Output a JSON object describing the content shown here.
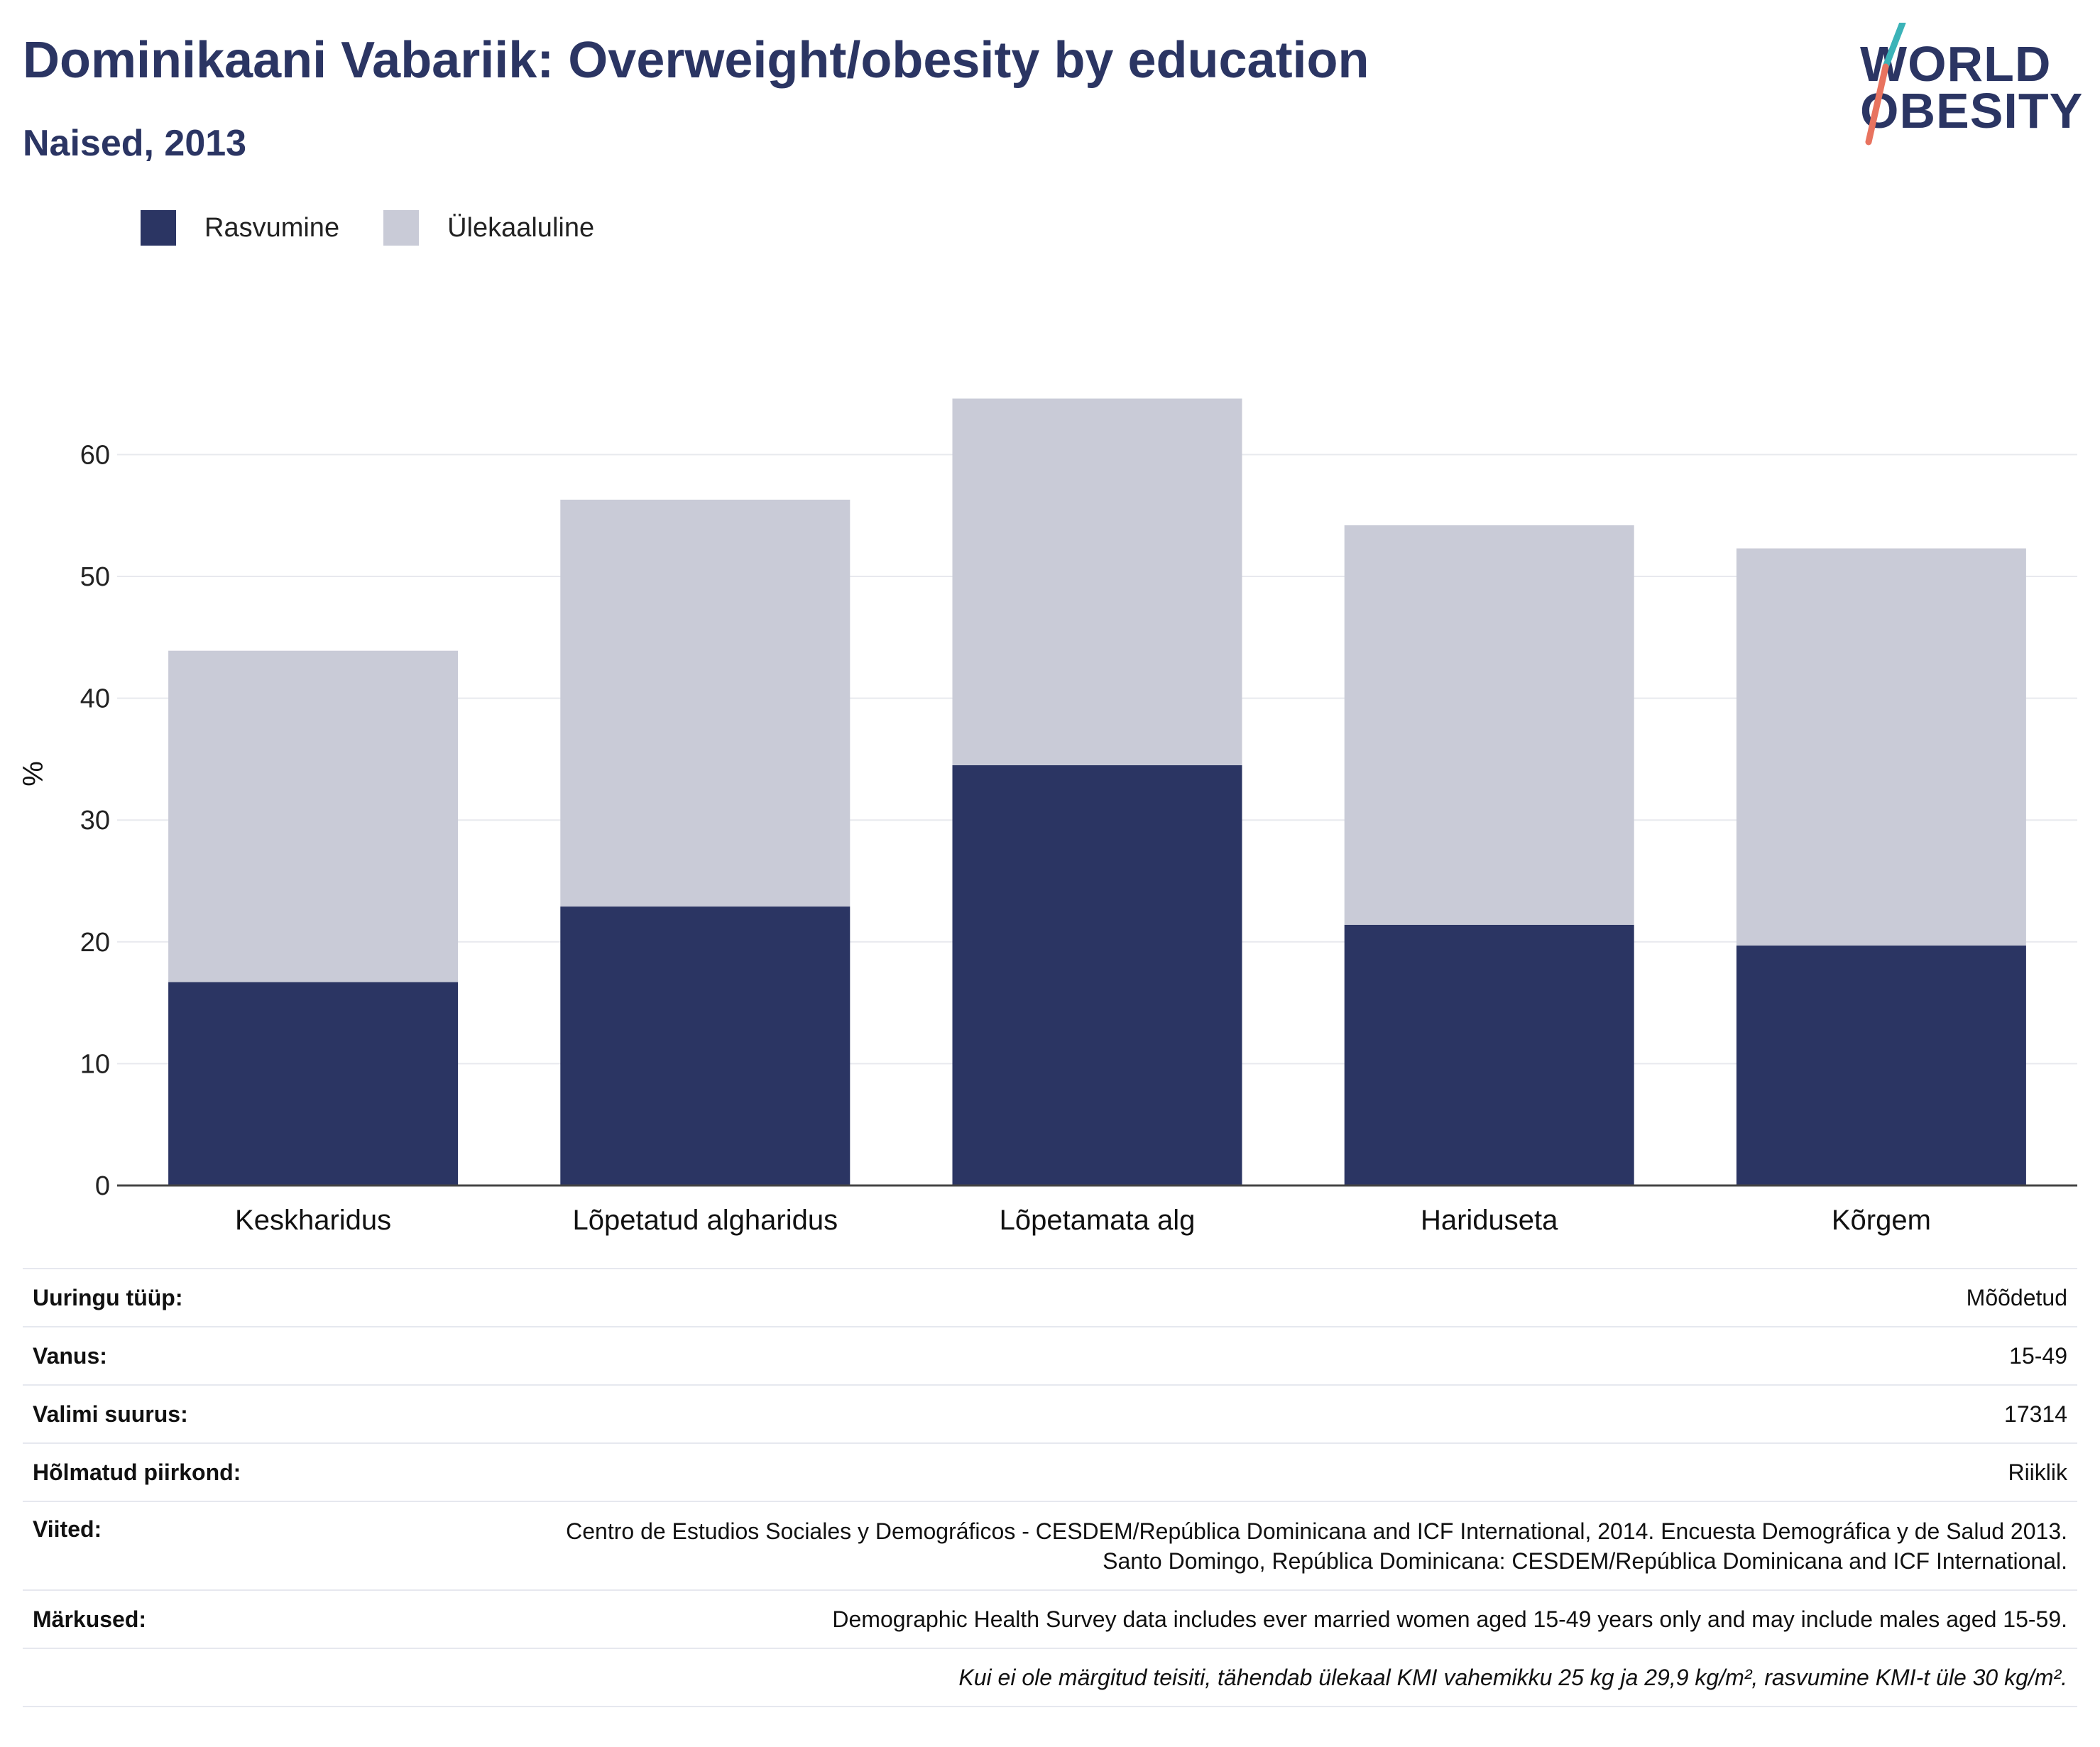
{
  "header": {
    "title": "Dominikaani Vabariik: Overweight/obesity by education",
    "subtitle": "Naised, 2013"
  },
  "logo": {
    "line1": "WORLD",
    "line2": "OBESITY",
    "accent_teal": "#3bb3b8",
    "accent_coral": "#e8735f"
  },
  "legend": [
    {
      "label": "Rasvumine",
      "color": "#2b3563"
    },
    {
      "label": "Ülekaaluline",
      "color": "#c9cbd7"
    }
  ],
  "chart_data": {
    "type": "bar",
    "stacked": true,
    "categories": [
      "Keskharidus",
      "Lõpetatud algharidus",
      "Lõpetamata alg",
      "Hariduseta",
      "Kõrgem"
    ],
    "series": [
      {
        "name": "Rasvumine",
        "color": "#2b3563",
        "values": [
          16.7,
          22.9,
          34.5,
          21.4,
          19.7
        ]
      },
      {
        "name": "Ülekaaluline",
        "color": "#c9cbd7",
        "values": [
          27.2,
          33.4,
          30.1,
          32.8,
          32.6
        ]
      }
    ],
    "ylabel": "%",
    "ylim": [
      0,
      70
    ],
    "yticks": [
      0,
      10,
      20,
      30,
      40,
      50,
      60
    ],
    "grid": true,
    "legend_position": "top-left"
  },
  "meta": {
    "survey_type": {
      "label": "Uuringu tüüp:",
      "value": "Mõõdetud"
    },
    "age": {
      "label": "Vanus:",
      "value": "15-49"
    },
    "sample_size": {
      "label": "Valimi suurus:",
      "value": "17314"
    },
    "area": {
      "label": "Hõlmatud piirkond:",
      "value": "Riiklik"
    },
    "references": {
      "label": "Viited:",
      "value": "Centro de Estudios Sociales y Demográficos - CESDEM/República Dominicana and ICF International, 2014. Encuesta Demográfica y de Salud 2013. Santo Domingo, República Dominicana: CESDEM/República Dominicana and ICF International."
    },
    "notes": {
      "label": "Märkused:",
      "value": "Demographic Health Survey data includes ever married women aged 15-49 years only and may include males aged 15-59."
    },
    "footnote": "Kui ei ole märgitud teisiti, tähendab ülekaal KMI vahemikku 25 kg ja 29,9 kg/m², rasvumine KMI-t üle 30 kg/m²."
  }
}
